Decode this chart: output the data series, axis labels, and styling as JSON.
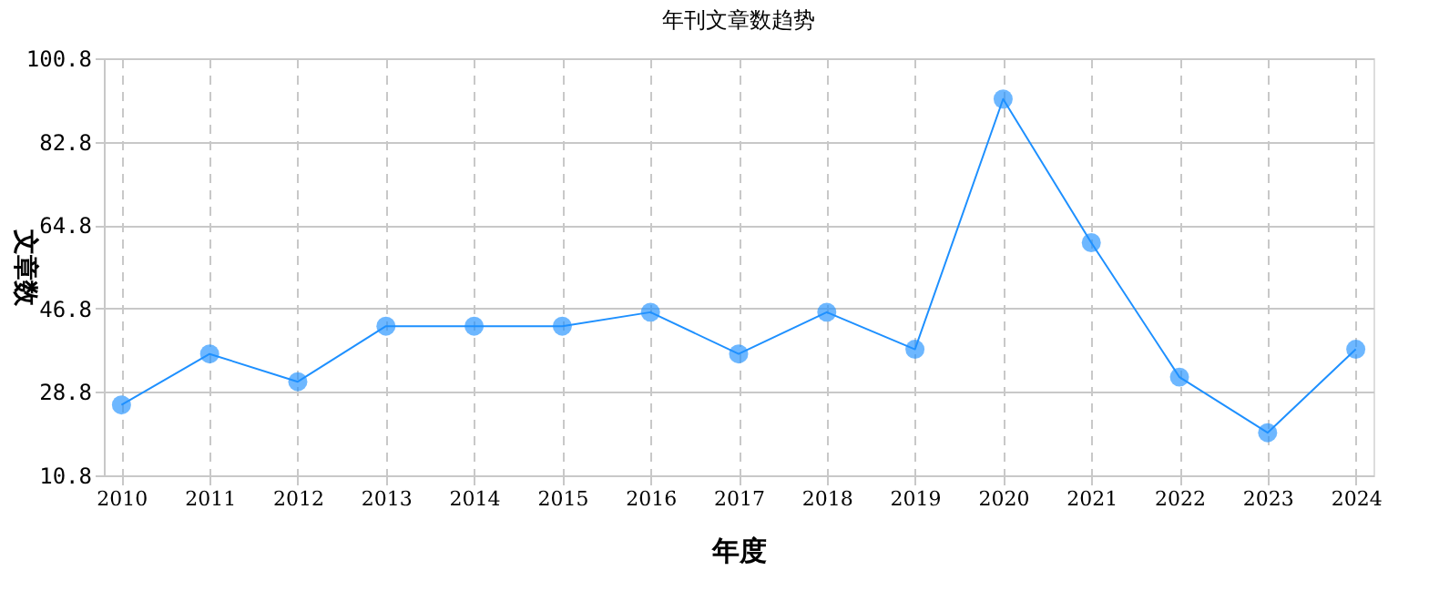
{
  "chart_data": {
    "type": "line",
    "title": "年刊文章数趋势",
    "xlabel": "年度",
    "ylabel": "文章数",
    "categories": [
      "2010",
      "2011",
      "2012",
      "2013",
      "2014",
      "2015",
      "2016",
      "2017",
      "2018",
      "2019",
      "2020",
      "2021",
      "2022",
      "2023",
      "2024"
    ],
    "series": [
      {
        "color": "#1e90ff",
        "values": [
          26,
          37,
          31,
          43,
          43,
          43,
          46,
          37,
          46,
          38,
          92,
          61,
          32,
          20,
          38
        ]
      }
    ],
    "ylim": [
      10.8,
      100.8
    ],
    "yticks": [
      10.8,
      28.8,
      46.8,
      64.8,
      82.8,
      100.8
    ],
    "grid": true,
    "marker": "circle",
    "line_style": "solid",
    "legend": false
  }
}
